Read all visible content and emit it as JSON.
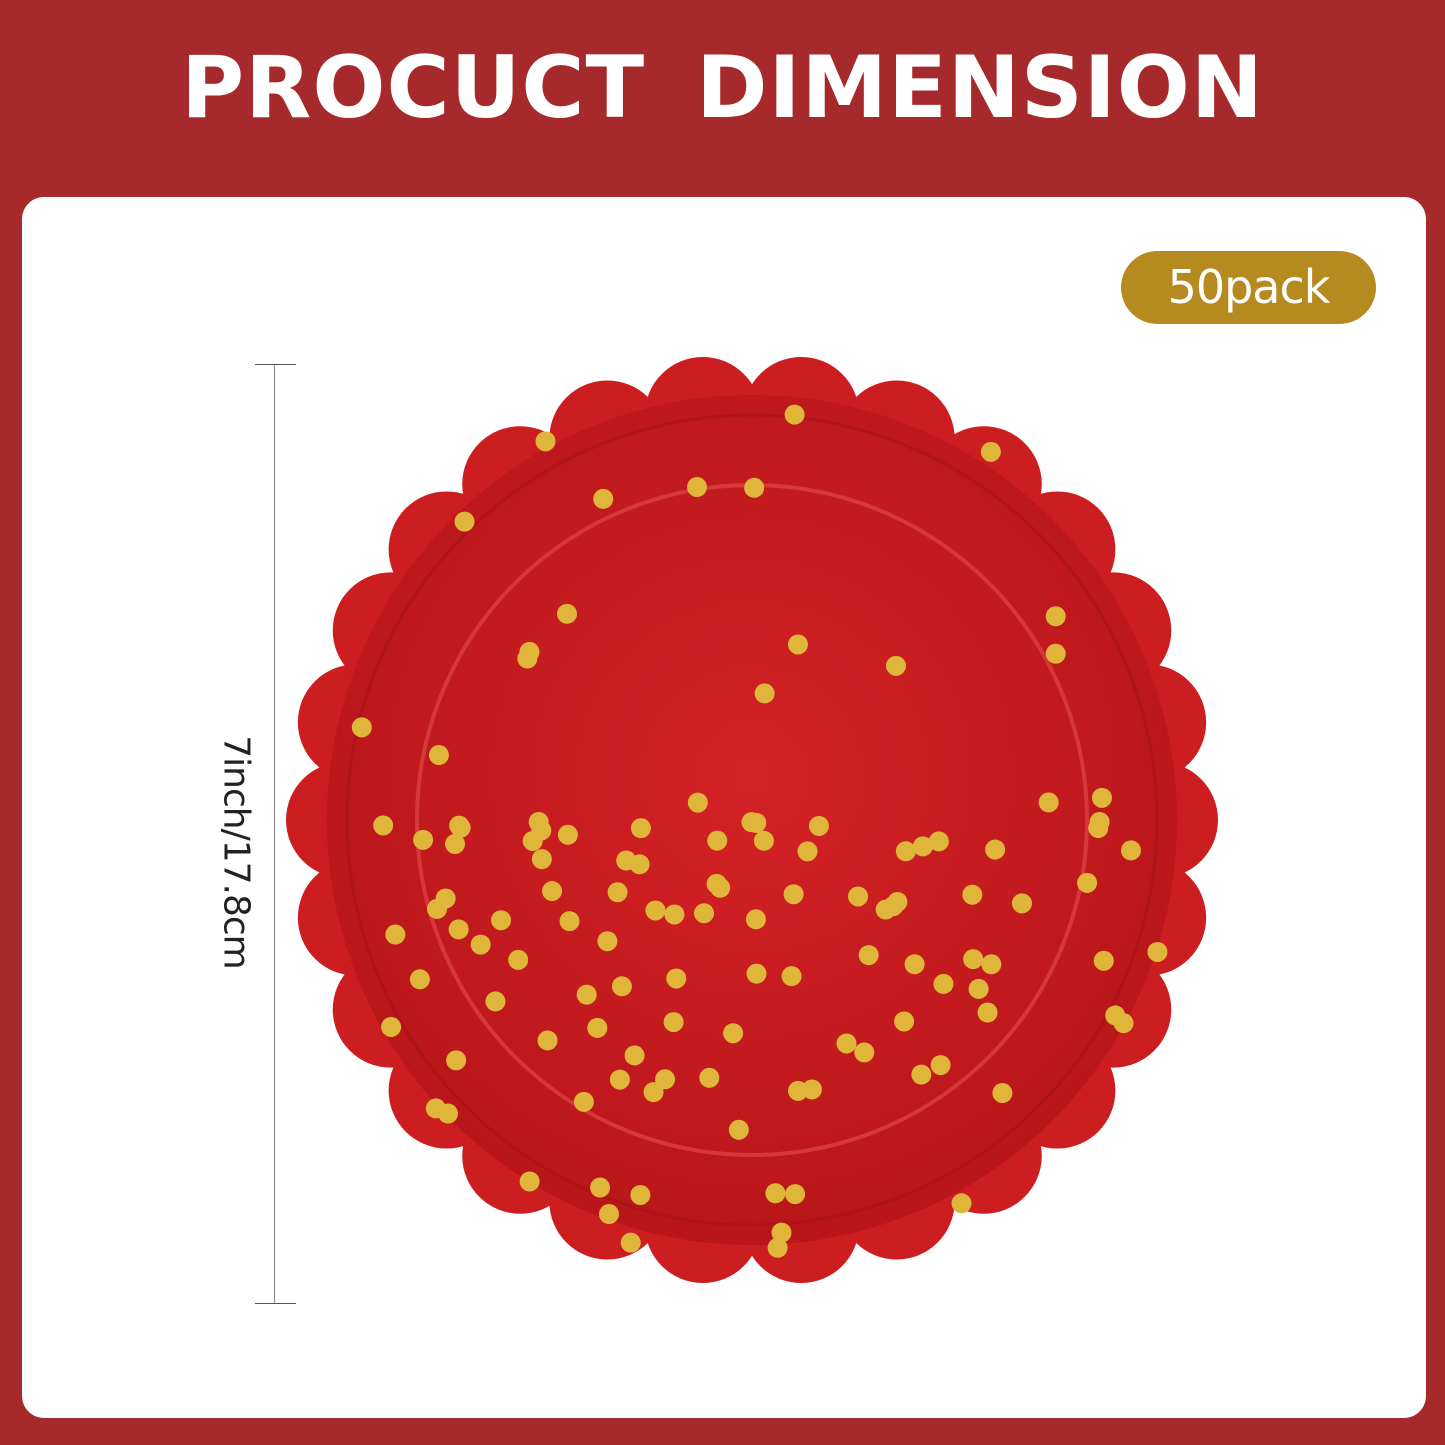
{
  "header": {
    "title": "PROCUCT DIMENSION"
  },
  "badge": {
    "label": "50pack"
  },
  "dimension": {
    "label": "7inch/17.8cm"
  },
  "colors": {
    "background": "#a6292b",
    "card": "#ffffff",
    "badge": "#b58a1f",
    "plate": "#c8191b",
    "dots": "#e0b63a"
  }
}
